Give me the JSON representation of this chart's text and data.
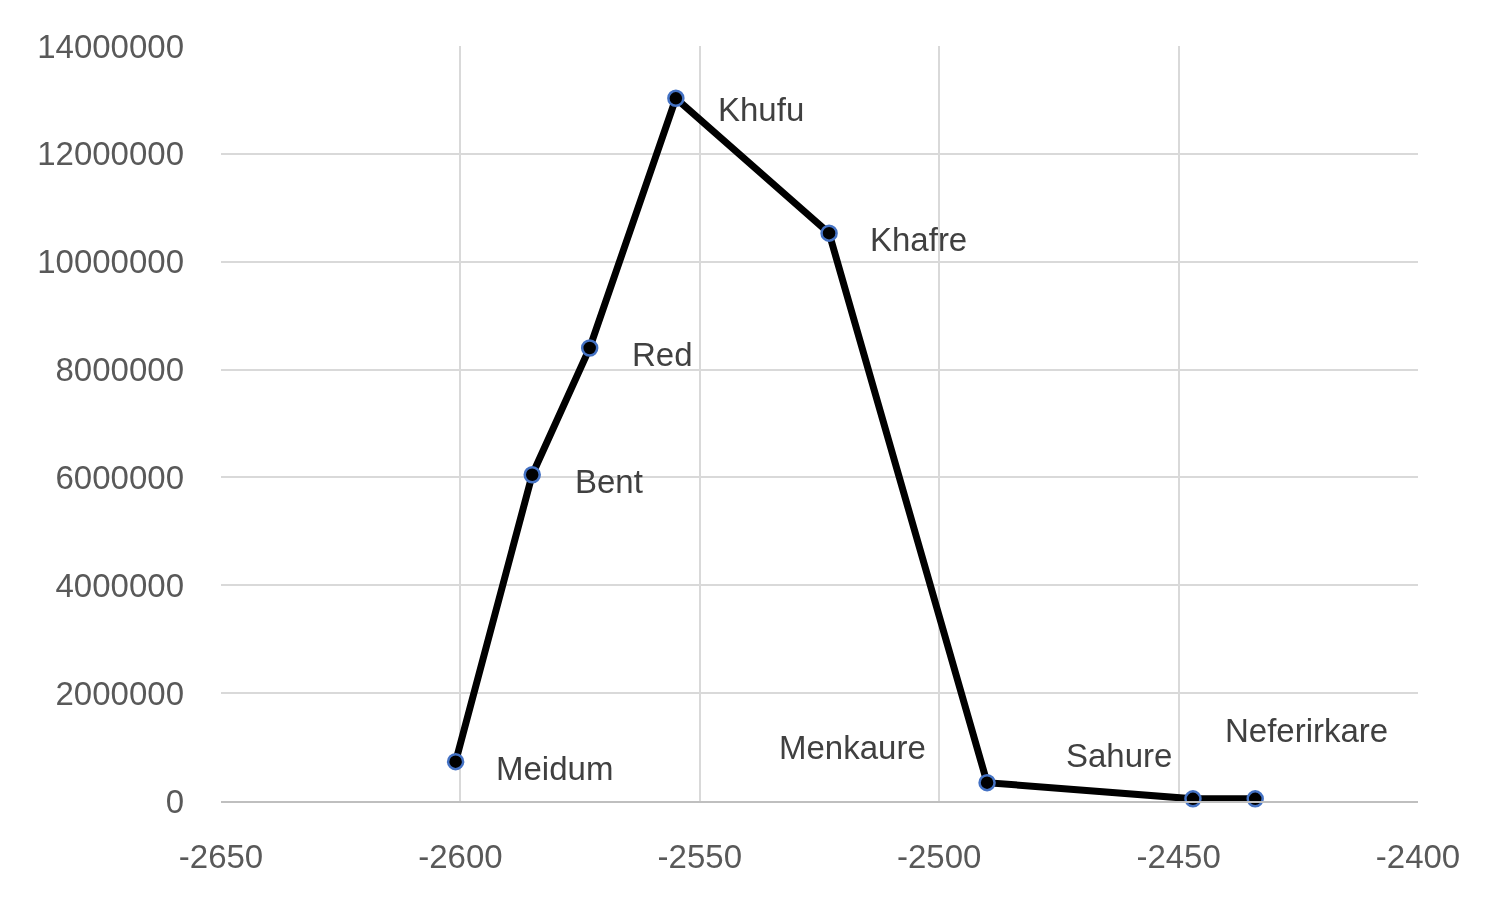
{
  "chart_data": {
    "type": "line",
    "x": [
      -2601,
      -2585,
      -2573,
      -2555,
      -2523,
      -2490,
      -2447,
      -2434
    ],
    "series": [
      {
        "color": "#000000",
        "values": [
          730000,
          6050000,
          8400000,
          13030000,
          10530000,
          340000,
          40000,
          40000
        ]
      }
    ],
    "xlim": [
      -2650,
      -2400
    ],
    "xticks": [
      -2650,
      -2600,
      -2550,
      -2500,
      -2450,
      -2400
    ],
    "ylim": [
      0,
      14000000
    ],
    "yticks": [
      0,
      2000000,
      4000000,
      6000000,
      8000000,
      10000000,
      12000000,
      14000000
    ],
    "grid": true,
    "marker": "circle",
    "line_style": "solid",
    "annotations": [
      {
        "text": "Meidum",
        "x": -2601,
        "y": 730000
      },
      {
        "text": "Bent",
        "x": -2585,
        "y": 6050000
      },
      {
        "text": "Red",
        "x": -2573,
        "y": 8400000
      },
      {
        "text": "Khufu",
        "x": -2555,
        "y": 13030000
      },
      {
        "text": "Khafre",
        "x": -2523,
        "y": 10530000
      },
      {
        "text": "Menkaure",
        "x": -2490,
        "y": 340000
      },
      {
        "text": "Sahure",
        "x": -2447,
        "y": 40000
      },
      {
        "text": "Neferirkare",
        "x": -2434,
        "y": 40000
      }
    ]
  }
}
